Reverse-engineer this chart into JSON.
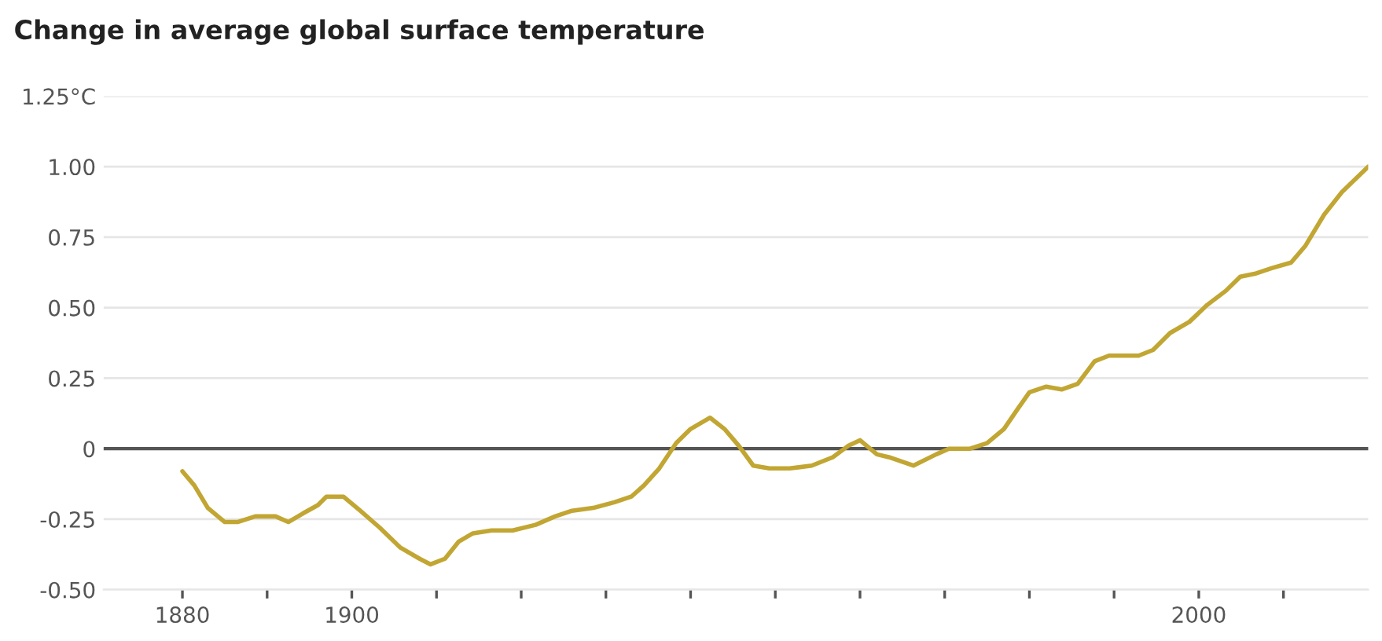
{
  "chart_data": {
    "type": "line",
    "title": "Change in average global surface temperature",
    "x": [
      1880,
      1881.4,
      1883,
      1885,
      1886.5,
      1888.6,
      1891,
      1892.5,
      1894.2,
      1896,
      1897,
      1899,
      1901,
      1903.3,
      1905.7,
      1908,
      1909.3,
      1911,
      1912.6,
      1914.3,
      1916.5,
      1919,
      1921.7,
      1924,
      1926,
      1928.5,
      1931,
      1933,
      1934.5,
      1936.3,
      1938.3,
      1940,
      1942.3,
      1944,
      1945.7,
      1947.4,
      1949.3,
      1951.7,
      1954.3,
      1956.8,
      1958.6,
      1960,
      1962,
      1963.4,
      1966.3,
      1969,
      1970.5,
      1973,
      1975,
      1977,
      1978.6,
      1980,
      1982,
      1983.8,
      1985.7,
      1987.7,
      1989.4,
      1992.9,
      1994.6,
      1996.6,
      1998.9,
      2001,
      2003.2,
      2004.9,
      2006.6,
      2008.6,
      2010.9,
      2012.6,
      2014.8,
      2016.9,
      2020
    ],
    "series": [
      {
        "color": "#c2a633",
        "values": [
          -0.08,
          -0.13,
          -0.21,
          -0.26,
          -0.26,
          -0.24,
          -0.24,
          -0.26,
          -0.23,
          -0.2,
          -0.17,
          -0.17,
          -0.22,
          -0.28,
          -0.35,
          -0.39,
          -0.41,
          -0.39,
          -0.33,
          -0.3,
          -0.29,
          -0.29,
          -0.27,
          -0.24,
          -0.22,
          -0.21,
          -0.19,
          -0.17,
          -0.13,
          -0.07,
          0.02,
          0.07,
          0.11,
          0.07,
          0.01,
          -0.06,
          -0.07,
          -0.07,
          -0.06,
          -0.03,
          0.01,
          0.03,
          -0.02,
          -0.03,
          -0.06,
          -0.02,
          0,
          0,
          0.02,
          0.07,
          0.14,
          0.2,
          0.22,
          0.21,
          0.23,
          0.31,
          0.33,
          0.33,
          0.35,
          0.41,
          0.45,
          0.51,
          0.56,
          0.61,
          0.62,
          0.64,
          0.66,
          0.72,
          0.83,
          0.91,
          1.0
        ]
      }
    ],
    "xlim": [
      1870.7,
      2020
    ],
    "xticks": [
      1880,
      {
        "value": 1890,
        "label": null
      },
      1900,
      {
        "value": 1910,
        "label": null
      },
      {
        "value": 1920,
        "label": null
      },
      {
        "value": 1930,
        "label": null
      },
      {
        "value": 1940,
        "label": null
      },
      {
        "value": 1950,
        "label": null
      },
      {
        "value": 1960,
        "label": null
      },
      {
        "value": 1970,
        "label": null
      },
      {
        "value": 1980,
        "label": null
      },
      {
        "value": 1990,
        "label": null
      },
      2000,
      {
        "value": 2010,
        "label": null
      }
    ],
    "ylim": [
      -0.5,
      1.25
    ],
    "yticks": [
      {
        "value": -0.5,
        "label": "-0.50"
      },
      {
        "value": -0.25,
        "label": "-0.25"
      },
      0,
      {
        "value": 0.25,
        "label": "0.25"
      },
      {
        "value": 0.5,
        "label": "0.50"
      },
      {
        "value": 0.75,
        "label": "0.75"
      },
      {
        "value": 1.0,
        "label": "1.00"
      },
      {
        "value": 1.25,
        "label": "1.25°C"
      }
    ],
    "ref_lines": [
      {
        "axis": "y",
        "value": 0,
        "color": "#555555"
      }
    ],
    "grid": "y",
    "legend": false,
    "marker": "none",
    "line_style": "solid"
  }
}
